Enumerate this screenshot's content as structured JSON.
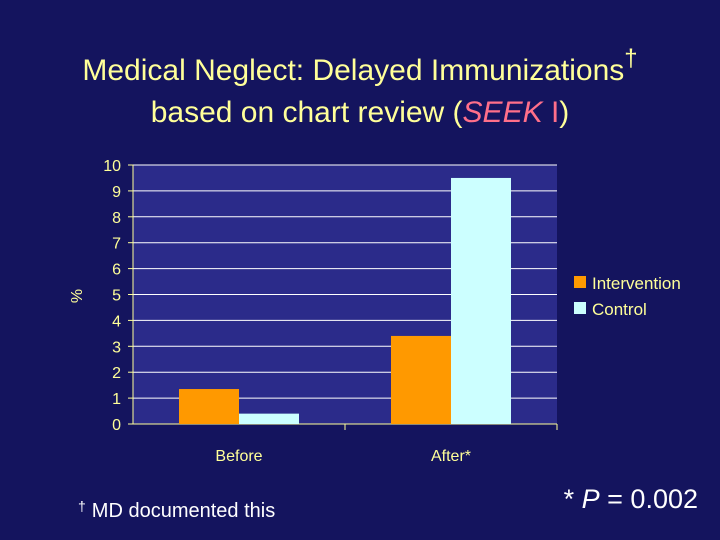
{
  "title": {
    "line1": "Medical Neglect: Delayed Immunizations",
    "dagger": "†",
    "line2_prefix": "based on chart review (",
    "line2_seek": "SEEK",
    "line2_space": " ",
    "line2_roman": "I",
    "line2_suffix": ")"
  },
  "chart_data": {
    "type": "bar",
    "categories": [
      "Before",
      "After*"
    ],
    "series": [
      {
        "name": "Intervention",
        "values": [
          1.35,
          3.4
        ],
        "color": "#ff9900"
      },
      {
        "name": "Control",
        "values": [
          0.4,
          9.5
        ],
        "color": "#ccffff"
      }
    ],
    "ylabel": "%",
    "ylim": [
      0,
      10
    ],
    "yticks": [
      0,
      1,
      2,
      3,
      4,
      5,
      6,
      7,
      8,
      9,
      10
    ],
    "grid": true,
    "legend_position": "right",
    "plot_bg_color": "#2b2b8a",
    "grid_color": "#ffffff",
    "tick_color": "#ffff99"
  },
  "footnote": {
    "symbol": "†",
    "text": "MD documented this"
  },
  "pvalue": {
    "prefix": "* ",
    "p": "P",
    "suffix": " = 0.002"
  }
}
